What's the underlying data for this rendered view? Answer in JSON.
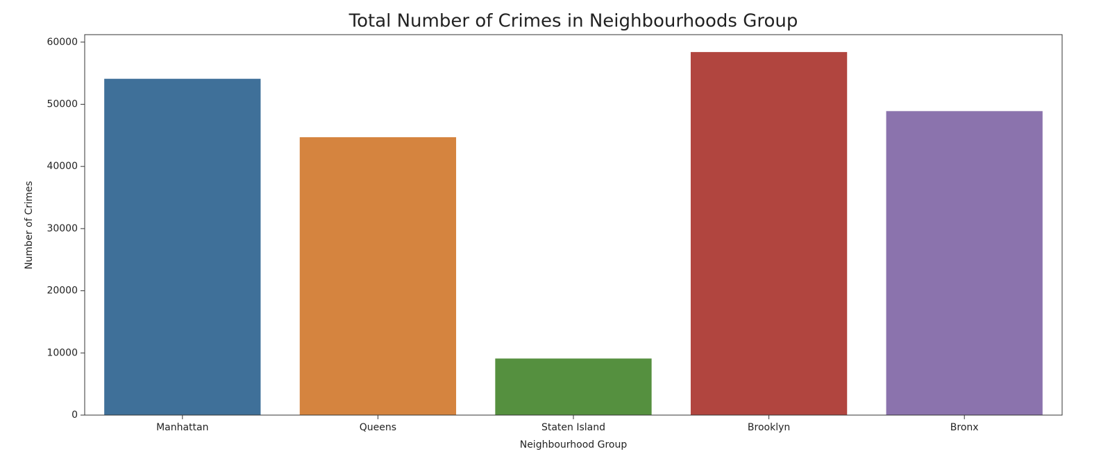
{
  "chart_data": {
    "type": "bar",
    "title": "Total Number of Crimes in Neighbourhoods Group",
    "x_label": "Neighbourhood Group",
    "y_label": "Number of Crimes",
    "categories": [
      "Manhattan",
      "Queens",
      "Staten Island",
      "Brooklyn",
      "Bronx"
    ],
    "values": [
      54100,
      44700,
      9100,
      58400,
      48900
    ],
    "colors": [
      "#3f7099",
      "#d5843f",
      "#55903f",
      "#b1453f",
      "#8b73ad"
    ],
    "ylim": [
      0,
      61200
    ],
    "yticks": [
      0,
      10000,
      20000,
      30000,
      40000,
      50000,
      60000
    ]
  }
}
